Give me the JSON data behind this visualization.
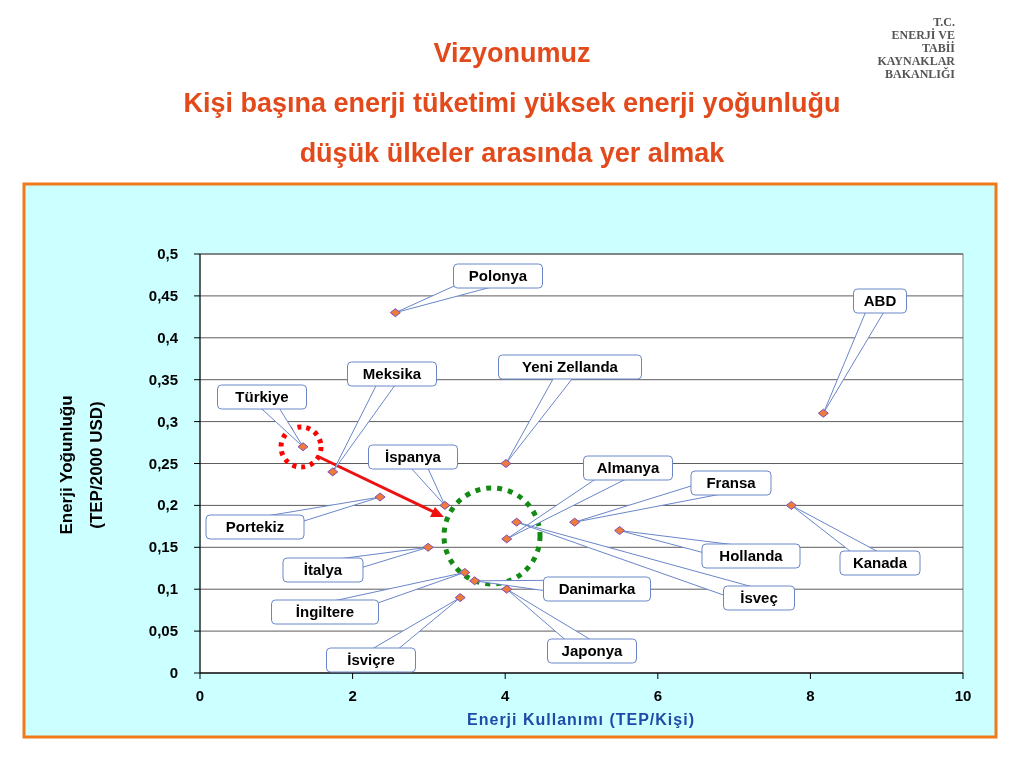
{
  "chart_data": {
    "type": "scatter",
    "title": "Vizyonumuz",
    "subtitle": "Kişi başına enerji tüketimi yüksek enerji yoğunluğu düşük ülkeler arasında yer almak",
    "xlabel": "Enerji Kullanımı (TEP/Kişi)",
    "ylabel": "Enerji Yoğunluğu (TEP/2000 USD)",
    "series": [
      {
        "color": "#f07a3a",
        "x": [
          2.56,
          8.17,
          1.74,
          4.01,
          1.35,
          3.21,
          4.02,
          4.91,
          2.36,
          5.5,
          7.75,
          2.99,
          3.6,
          4.15,
          3.47,
          4.02,
          3.41
        ],
        "values": [
          0.43,
          0.31,
          0.24,
          0.25,
          0.27,
          0.2,
          0.16,
          0.18,
          0.21,
          0.17,
          0.2,
          0.15,
          0.11,
          0.18,
          0.12,
          0.1,
          0.09
        ]
      }
    ],
    "annotations": [
      {
        "text": "Polonya",
        "x": 2.56,
        "y": 0.43
      },
      {
        "text": "ABD",
        "x": 8.17,
        "y": 0.31
      },
      {
        "text": "Meksika",
        "x": 1.74,
        "y": 0.24
      },
      {
        "text": "Yeni Zellanda",
        "x": 4.01,
        "y": 0.25
      },
      {
        "text": "Türkiye",
        "x": 1.35,
        "y": 0.27
      },
      {
        "text": "İspanya",
        "x": 3.21,
        "y": 0.2
      },
      {
        "text": "Almanya",
        "x": 4.02,
        "y": 0.16
      },
      {
        "text": "Fransa",
        "x": 4.91,
        "y": 0.18
      },
      {
        "text": "Portekiz",
        "x": 2.36,
        "y": 0.21
      },
      {
        "text": "Hollanda",
        "x": 5.5,
        "y": 0.17
      },
      {
        "text": "Kanada",
        "x": 7.75,
        "y": 0.2
      },
      {
        "text": "İtalya",
        "x": 2.99,
        "y": 0.15
      },
      {
        "text": "Danimarka",
        "x": 3.6,
        "y": 0.11
      },
      {
        "text": "İsveç",
        "x": 4.15,
        "y": 0.18
      },
      {
        "text": "İngiltere",
        "x": 3.47,
        "y": 0.12
      },
      {
        "text": "Japonya",
        "x": 4.02,
        "y": 0.1
      },
      {
        "text": "İsviçre",
        "x": 3.41,
        "y": 0.09
      },
      "T.C. ENERJİ VE TABİİ KAYNAKLAR BAKANLIĞI"
    ],
    "xlim": [
      0,
      10
    ],
    "xticks": [
      0,
      2,
      4,
      6,
      8,
      10
    ],
    "ylim": [
      0,
      0.5
    ],
    "yticks": [
      0,
      {
        "value": 0.05,
        "label": "0,05"
      },
      {
        "value": 0.1,
        "label": "0,1"
      },
      {
        "value": 0.15,
        "label": "0,15"
      },
      {
        "value": 0.2,
        "label": "0,2"
      },
      {
        "value": 0.25,
        "label": "0,25"
      },
      {
        "value": 0.3,
        "label": "0,3"
      },
      {
        "value": 0.35,
        "label": "0,35"
      },
      {
        "value": 0.4,
        "label": "0,4"
      },
      {
        "value": 0.45,
        "label": "0,45"
      },
      {
        "value": 0.5,
        "label": "0,5"
      }
    ],
    "grid": "y",
    "marker": "diamond"
  }
}
